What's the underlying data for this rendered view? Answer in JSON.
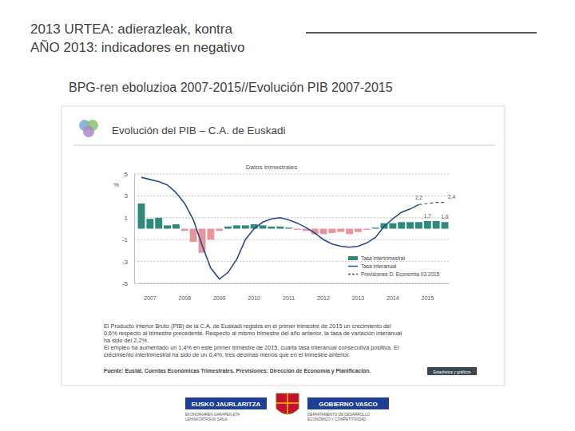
{
  "slide": {
    "header": [
      "2013 URTEA: adierazleak, kontra",
      "AÑO 2013: indicadores en negativo"
    ],
    "subtitle": "BPG-ren eboluzioa 2007-2015//Evolución PIB 2007-2015",
    "footer": {
      "left": "EUSKO JAURLARITZA",
      "right": "GOBIERNO VASCO",
      "left_sub": [
        "EKONOMIAREN GARAPEN ETA",
        "LEHIAKORTASUN SAILA"
      ],
      "right_sub": [
        "DEPARTAMENTO DE DESARROLLO",
        "ECONÓMICO Y COMPETITIVIDAD"
      ]
    }
  },
  "chart_data": {
    "type": "bar",
    "title": "Evolución del PIB – C.A. de Euskadi",
    "subtitle": "Datos trimestrales",
    "y_label": "%",
    "categories": [
      null,
      "2007",
      null,
      null,
      null,
      "2008",
      null,
      null,
      null,
      "2009",
      null,
      null,
      null,
      "2010",
      null,
      null,
      null,
      "2011",
      null,
      null,
      null,
      "2012",
      null,
      null,
      null,
      "2013",
      null,
      null,
      null,
      "2014",
      null,
      null,
      null,
      "2015",
      null,
      null
    ],
    "series": [
      {
        "name": "Tasa intertrimestral",
        "type": "bar",
        "color": "#2e8b7a",
        "colors": [
          "#2e8b7a",
          "#2e8b7a",
          "#2e8b7a",
          "#2e8b7a",
          "#2e8b7a",
          "#e9939d",
          "#e9939d",
          "#e9939d",
          "#e9939d",
          "#e9939d",
          "#2e8b7a",
          "#2e8b7a",
          "#2e8b7a",
          "#2e8b7a",
          "#2e8b7a",
          "#2e8b7a",
          "#2e8b7a",
          "#2e8b7a",
          "#e9939d",
          "#e9939d",
          "#e9939d",
          "#e9939d",
          "#e9939d",
          "#e9939d",
          "#e9939d",
          "#e9939d",
          "#e9939d",
          "#2e8b7a",
          "#2e8b7a",
          "#2e8b7a",
          "#2e8b7a",
          "#2e8b7a",
          "#2e8b7a",
          "#2e8b7a",
          "#2e8b7a",
          "#2e8b7a"
        ],
        "values": [
          2.3,
          0.9,
          1.0,
          0.3,
          0.4,
          -0.2,
          -1.2,
          -2.2,
          -1.0,
          -0.2,
          0.2,
          0.3,
          0.3,
          0.4,
          0.3,
          0.2,
          0.2,
          0.1,
          -0.1,
          -0.2,
          -0.5,
          -0.5,
          -0.4,
          -0.3,
          -0.5,
          -0.3,
          -0.1,
          0.1,
          0.5,
          0.5,
          0.6,
          0.6,
          0.6,
          0.7,
          0.7,
          0.6
        ]
      },
      {
        "name": "Tasa interanual",
        "type": "line",
        "color": "#2b4a8c",
        "values": [
          4.7,
          4.5,
          4.3,
          4.0,
          3.3,
          2.3,
          0.8,
          -1.5,
          -3.6,
          -4.6,
          -4.0,
          -2.8,
          -1.0,
          0.0,
          0.6,
          0.9,
          1.0,
          0.8,
          0.5,
          0.1,
          -0.4,
          -1.0,
          -1.4,
          -1.6,
          -1.7,
          -1.6,
          -1.3,
          -0.8,
          0.2,
          0.9,
          1.5,
          1.8,
          2.2,
          null,
          null,
          null
        ]
      },
      {
        "name": "Previsiones D. Economía 03 2015",
        "type": "line",
        "color": "#555555",
        "line_style": "dashed",
        "values": [
          null,
          null,
          null,
          null,
          null,
          null,
          null,
          null,
          null,
          null,
          null,
          null,
          null,
          null,
          null,
          null,
          null,
          null,
          null,
          null,
          null,
          null,
          null,
          null,
          null,
          null,
          null,
          null,
          null,
          null,
          null,
          null,
          2.2,
          2.3,
          2.4,
          2.4
        ]
      }
    ],
    "ylim": [
      -5,
      5
    ],
    "yticks": [
      5,
      3,
      1,
      -1,
      -3,
      -5
    ],
    "grid": true,
    "legend": "lower right",
    "annotations": [
      "2,2",
      "2,4",
      "1,7",
      "1,6"
    ],
    "notes": [
      "El Producto Interior Bruto (PIB) de la C.A. de Euskadi registra en el primer trimestre de 2015 un crecimiento del",
      "0,6% respecto al trimestre precedente. Respecto al mismo trimestre del año anterior, la tasa de variación interanual",
      "ha sido del 2,2%.",
      "El empleo ha aumentado un 1,4% en este primer trimestre de 2015, cuarta tasa interanual consecutiva positiva. El",
      "crecimiento intertrimestral ha sido de un 0,4%, tres décimas menos que en el trimestre anterior."
    ],
    "source": "Fuente: Eustat. Cuentas Económicas Trimestrales. Previsiones: Dirección de Economía y Planificación.",
    "button": "Estadística y gráficos"
  }
}
